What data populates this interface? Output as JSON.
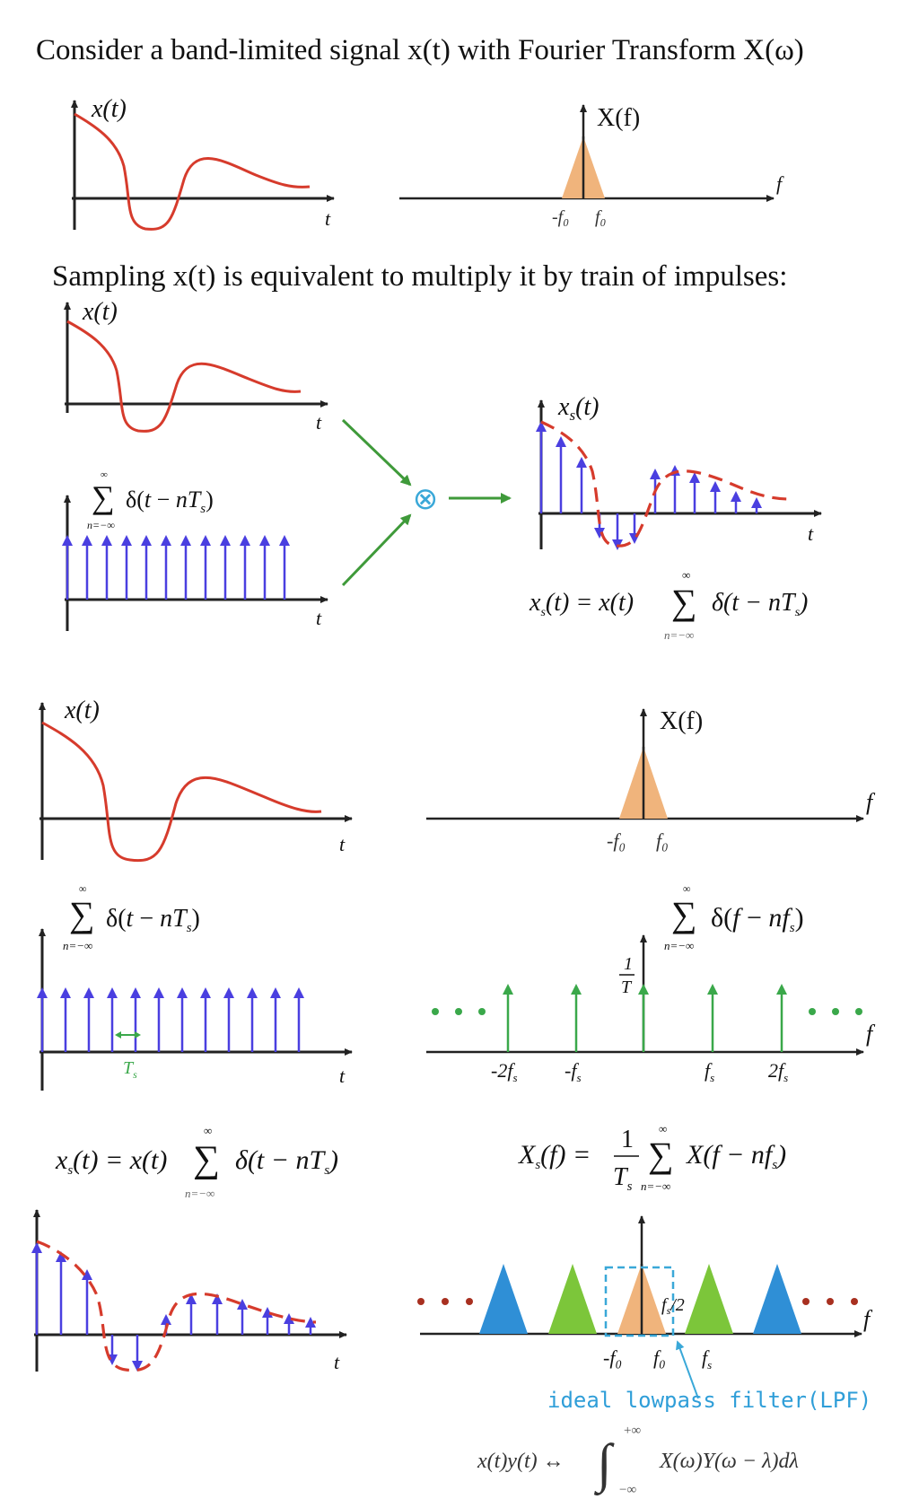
{
  "heading": "Consider a band-limited signal x(t) with Fourier Transform X(ω)",
  "sampling_text": "Sampling x(t) is equivalent to multiply it by train of impulses:",
  "labels": {
    "x_t": "x(t)",
    "X_f": "X(f)",
    "xs_t": "xs(t)",
    "t": "t",
    "f": "f",
    "neg_f0": "-f₀",
    "f0": "f₀",
    "Ts": "Ts",
    "one_over_T": "1/T",
    "neg_2fs": "-2fs",
    "neg_fs": "-fs",
    "fs": "fs",
    "two_fs": "2fs",
    "fs_half": "fs/2",
    "multiply_symbol": "⊗"
  },
  "formulas": {
    "impulse_train_time": "Σ δ(t − nTs), n=−∞..∞",
    "impulse_train_freq": "Σ δ(f − nfs), n=−∞..∞",
    "sampled_signal": "xs(t) = x(t) Σ δ(t − nTs)",
    "sampled_spectrum": "Xs(f) = (1/Ts) Σ X(f − nfs)",
    "convolution_property": "x(t)y(t) ↔ ∫ X(ω)Y(ω − λ)dλ"
  },
  "lpf_label": "ideal lowpass filter(LPF)",
  "colors": {
    "signal": "#d63b2c",
    "impulse": "#4a3fe0",
    "spectrum_center": "#f0b47c",
    "spectrum_green": "#7cc63a",
    "spectrum_blue": "#2f8fd6",
    "freq_impulse": "#3aa84a",
    "arrow_green": "#3f9a3a",
    "lpf_box": "#3aa8d8",
    "lpf_text": "#2f9ed8",
    "dots_red": "#a83020",
    "dots_green": "#3aa84a"
  }
}
